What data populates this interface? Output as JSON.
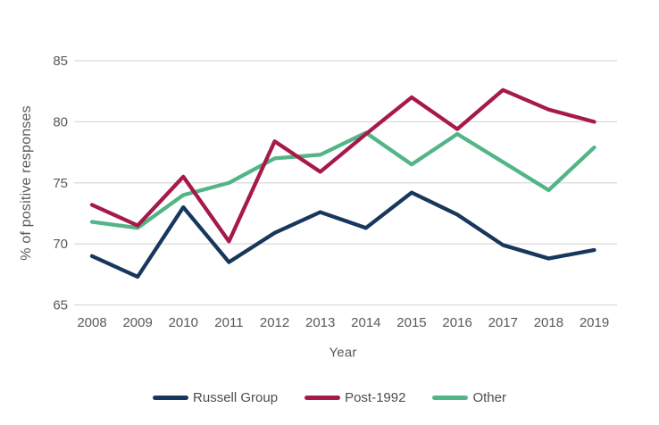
{
  "chart_data": {
    "type": "line",
    "title": "",
    "xlabel": "Year",
    "ylabel": "% of positive responses",
    "x": [
      2008,
      2009,
      2010,
      2011,
      2012,
      2013,
      2014,
      2015,
      2016,
      2017,
      2018,
      2019
    ],
    "y_ticks": [
      65,
      70,
      75,
      80,
      85
    ],
    "ylim": [
      65,
      85
    ],
    "grid": "horizontal-only",
    "legend_position": "bottom-center",
    "background_color": "#ffffff",
    "gridline_color": "#d9d9d9",
    "axis_text_color": "#595959",
    "series": [
      {
        "name": "Russell Group",
        "color": "#17375c",
        "values": [
          69.0,
          67.3,
          73.0,
          68.5,
          70.9,
          72.6,
          71.3,
          74.2,
          72.4,
          69.9,
          68.8,
          69.5
        ]
      },
      {
        "name": "Post-1992",
        "color": "#a6194b",
        "values": [
          73.2,
          71.5,
          75.5,
          70.2,
          78.4,
          75.9,
          79.0,
          82.0,
          79.4,
          82.6,
          81.0,
          80.0
        ]
      },
      {
        "name": "Other",
        "color": "#52b586",
        "values": [
          71.8,
          71.3,
          74.0,
          75.0,
          77.0,
          77.3,
          79.1,
          76.5,
          79.0,
          76.7,
          74.4,
          77.9
        ]
      }
    ]
  }
}
